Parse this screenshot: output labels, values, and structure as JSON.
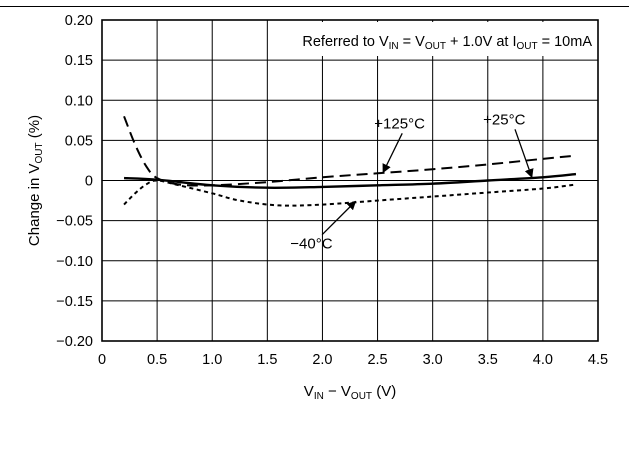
{
  "chart_data": {
    "type": "line",
    "xlim": [
      0,
      4.5
    ],
    "ylim": [
      -0.2,
      0.2
    ],
    "x_ticks": [
      0,
      0.5,
      1.0,
      1.5,
      2.0,
      2.5,
      3.0,
      3.5,
      4.0,
      4.5
    ],
    "x_tick_labels": [
      "0",
      "0.5",
      "1.0",
      "1.5",
      "2.0",
      "2.5",
      "3.0",
      "3.5",
      "4.0",
      "4.5"
    ],
    "y_ticks": [
      0.2,
      0.15,
      0.1,
      0.05,
      0,
      -0.05,
      -0.1,
      -0.15,
      -0.2
    ],
    "y_tick_labels": [
      "0.20",
      "0.15",
      "0.10",
      "0.05",
      "0",
      "−0.05",
      "−0.10",
      "−0.15",
      "−0.20"
    ],
    "grid": true,
    "xlabel": {
      "parts": [
        [
          "V",
          ""
        ],
        [
          "IN",
          "sub"
        ],
        [
          " − V",
          ""
        ],
        [
          "OUT",
          "sub"
        ],
        [
          " (V)",
          ""
        ]
      ]
    },
    "ylabel": {
      "parts": [
        [
          "Change in V",
          ""
        ],
        [
          "OUT",
          "sub"
        ],
        [
          " (%)",
          ""
        ]
      ]
    },
    "annotation_box": {
      "parts": [
        [
          "Referred to V",
          ""
        ],
        [
          "IN",
          "sub"
        ],
        [
          " = V",
          ""
        ],
        [
          "OUT",
          "sub"
        ],
        [
          " + 1.0V at I",
          ""
        ],
        [
          "OUT",
          "sub"
        ],
        [
          " = 10mA",
          ""
        ]
      ]
    },
    "series": [
      {
        "name": "+125°C",
        "style": "dashed",
        "color": "#000000",
        "points": [
          [
            0.2,
            0.08
          ],
          [
            0.3,
            0.045
          ],
          [
            0.4,
            0.018
          ],
          [
            0.5,
            0.003
          ],
          [
            0.7,
            -0.005
          ],
          [
            1.0,
            -0.006
          ],
          [
            1.5,
            -0.002
          ],
          [
            2.0,
            0.004
          ],
          [
            2.5,
            0.009
          ],
          [
            3.0,
            0.014
          ],
          [
            3.5,
            0.02
          ],
          [
            4.0,
            0.027
          ],
          [
            4.3,
            0.031
          ]
        ]
      },
      {
        "name": "+25°C",
        "style": "solid",
        "color": "#000000",
        "points": [
          [
            0.2,
            0.003
          ],
          [
            0.5,
            0.001
          ],
          [
            1.0,
            -0.006
          ],
          [
            1.5,
            -0.009
          ],
          [
            2.0,
            -0.008
          ],
          [
            2.5,
            -0.006
          ],
          [
            3.0,
            -0.004
          ],
          [
            3.5,
            0.0
          ],
          [
            4.0,
            0.004
          ],
          [
            4.3,
            0.008
          ]
        ]
      },
      {
        "name": "−40°C",
        "style": "dotted",
        "color": "#000000",
        "points": [
          [
            0.2,
            -0.03
          ],
          [
            0.3,
            -0.016
          ],
          [
            0.4,
            -0.005
          ],
          [
            0.5,
            0.0
          ],
          [
            0.7,
            -0.006
          ],
          [
            1.0,
            -0.016
          ],
          [
            1.25,
            -0.025
          ],
          [
            1.6,
            -0.031
          ],
          [
            2.0,
            -0.03
          ],
          [
            2.5,
            -0.025
          ],
          [
            3.0,
            -0.02
          ],
          [
            3.5,
            -0.015
          ],
          [
            4.0,
            -0.01
          ],
          [
            4.3,
            -0.005
          ]
        ]
      }
    ],
    "labels": [
      {
        "text": "+125°C",
        "series": "+125°C",
        "at": [
          2.7,
          0.065
        ],
        "arrow_to": [
          2.55,
          0.01
        ]
      },
      {
        "text": "+25°C",
        "series": "+25°C",
        "at": [
          3.65,
          0.07
        ],
        "arrow_to": [
          3.9,
          0.004
        ]
      },
      {
        "text": "−40°C",
        "series": "−40°C",
        "at": [
          1.9,
          -0.085
        ],
        "arrow_to": [
          2.3,
          -0.026
        ]
      }
    ]
  }
}
